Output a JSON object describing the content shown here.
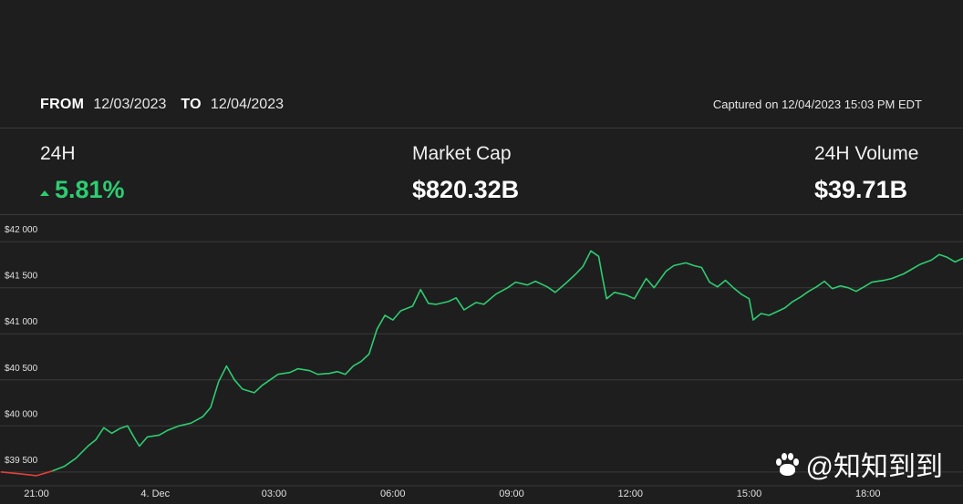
{
  "range": {
    "from_label": "FROM",
    "from_date": "12/03/2023",
    "to_label": "TO",
    "to_date": "12/04/2023",
    "captured": "Captured on 12/04/2023 15:03 PM EDT"
  },
  "stats": {
    "change_label": "24H",
    "change_value": "5.81%",
    "mcap_label": "Market Cap",
    "mcap_value": "$820.32B",
    "volume_label": "24H Volume",
    "volume_value": "$39.71B"
  },
  "colors": {
    "background": "#1e1e1e",
    "line_up": "#2ecc71",
    "line_down": "#e0403a",
    "grid": "#3a3a3a"
  },
  "watermark": "@知知到到",
  "chart_data": {
    "type": "line",
    "title": "",
    "xlabel": "",
    "ylabel": "",
    "grid": true,
    "ylim": [
      39350,
      42150
    ],
    "y_ticks": [
      {
        "value": 42000,
        "label": "$42 000"
      },
      {
        "value": 41500,
        "label": "$41 500"
      },
      {
        "value": 41000,
        "label": "$41 000"
      },
      {
        "value": 40500,
        "label": "$40 500"
      },
      {
        "value": 40000,
        "label": "$40 000"
      },
      {
        "value": 39500,
        "label": "$39 500"
      }
    ],
    "x_ticks": [
      {
        "value": 21,
        "label": "21:00"
      },
      {
        "value": 24,
        "label": "4. Dec"
      },
      {
        "value": 27,
        "label": "03:00"
      },
      {
        "value": 30,
        "label": "06:00"
      },
      {
        "value": 33,
        "label": "09:00"
      },
      {
        "value": 36,
        "label": "12:00"
      },
      {
        "value": 39,
        "label": "15:00"
      },
      {
        "value": 42,
        "label": "18:00"
      }
    ],
    "xlim": [
      21,
      44.4
    ],
    "series": [
      {
        "name": "",
        "points": [
          [
            20.1,
            39500
          ],
          [
            20.6,
            39480
          ],
          [
            21.0,
            39460
          ],
          [
            21.4,
            39510
          ],
          [
            21.7,
            39560
          ],
          [
            22.0,
            39650
          ],
          [
            22.3,
            39780
          ],
          [
            22.5,
            39850
          ],
          [
            22.7,
            39980
          ],
          [
            22.9,
            39920
          ],
          [
            23.1,
            39970
          ],
          [
            23.3,
            40000
          ],
          [
            23.5,
            39850
          ],
          [
            23.6,
            39780
          ],
          [
            23.8,
            39880
          ],
          [
            24.1,
            39900
          ],
          [
            24.3,
            39950
          ],
          [
            24.6,
            40000
          ],
          [
            24.9,
            40030
          ],
          [
            25.2,
            40100
          ],
          [
            25.4,
            40200
          ],
          [
            25.6,
            40480
          ],
          [
            25.8,
            40650
          ],
          [
            26.0,
            40500
          ],
          [
            26.2,
            40400
          ],
          [
            26.5,
            40360
          ],
          [
            26.7,
            40440
          ],
          [
            26.9,
            40500
          ],
          [
            27.1,
            40560
          ],
          [
            27.4,
            40580
          ],
          [
            27.6,
            40620
          ],
          [
            27.9,
            40600
          ],
          [
            28.1,
            40560
          ],
          [
            28.4,
            40570
          ],
          [
            28.6,
            40590
          ],
          [
            28.8,
            40560
          ],
          [
            29.0,
            40650
          ],
          [
            29.2,
            40700
          ],
          [
            29.4,
            40780
          ],
          [
            29.6,
            41050
          ],
          [
            29.8,
            41200
          ],
          [
            30.0,
            41150
          ],
          [
            30.2,
            41250
          ],
          [
            30.5,
            41300
          ],
          [
            30.7,
            41480
          ],
          [
            30.9,
            41330
          ],
          [
            31.1,
            41320
          ],
          [
            31.4,
            41350
          ],
          [
            31.6,
            41390
          ],
          [
            31.8,
            41260
          ],
          [
            32.1,
            41340
          ],
          [
            32.3,
            41320
          ],
          [
            32.6,
            41430
          ],
          [
            32.9,
            41500
          ],
          [
            33.1,
            41560
          ],
          [
            33.4,
            41530
          ],
          [
            33.6,
            41570
          ],
          [
            33.9,
            41510
          ],
          [
            34.1,
            41450
          ],
          [
            34.4,
            41560
          ],
          [
            34.6,
            41640
          ],
          [
            34.8,
            41730
          ],
          [
            35.0,
            41900
          ],
          [
            35.2,
            41840
          ],
          [
            35.3,
            41600
          ],
          [
            35.4,
            41380
          ],
          [
            35.6,
            41450
          ],
          [
            35.9,
            41420
          ],
          [
            36.1,
            41380
          ],
          [
            36.4,
            41600
          ],
          [
            36.6,
            41500
          ],
          [
            36.9,
            41680
          ],
          [
            37.1,
            41740
          ],
          [
            37.4,
            41770
          ],
          [
            37.6,
            41740
          ],
          [
            37.8,
            41720
          ],
          [
            38.0,
            41560
          ],
          [
            38.2,
            41510
          ],
          [
            38.4,
            41580
          ],
          [
            38.6,
            41500
          ],
          [
            38.8,
            41430
          ],
          [
            39.0,
            41380
          ],
          [
            39.1,
            41150
          ],
          [
            39.3,
            41220
          ],
          [
            39.5,
            41200
          ],
          [
            39.7,
            41240
          ],
          [
            39.9,
            41280
          ],
          [
            40.1,
            41350
          ],
          [
            40.3,
            41400
          ],
          [
            40.5,
            41460
          ],
          [
            40.7,
            41510
          ],
          [
            40.9,
            41570
          ],
          [
            41.1,
            41490
          ],
          [
            41.3,
            41520
          ],
          [
            41.5,
            41500
          ],
          [
            41.7,
            41460
          ],
          [
            41.9,
            41510
          ],
          [
            42.1,
            41560
          ],
          [
            42.4,
            41580
          ],
          [
            42.6,
            41600
          ],
          [
            42.9,
            41650
          ],
          [
            43.1,
            41700
          ],
          [
            43.3,
            41750
          ],
          [
            43.6,
            41800
          ],
          [
            43.8,
            41860
          ],
          [
            44.0,
            41830
          ],
          [
            44.2,
            41780
          ],
          [
            44.4,
            41820
          ]
        ]
      }
    ]
  }
}
